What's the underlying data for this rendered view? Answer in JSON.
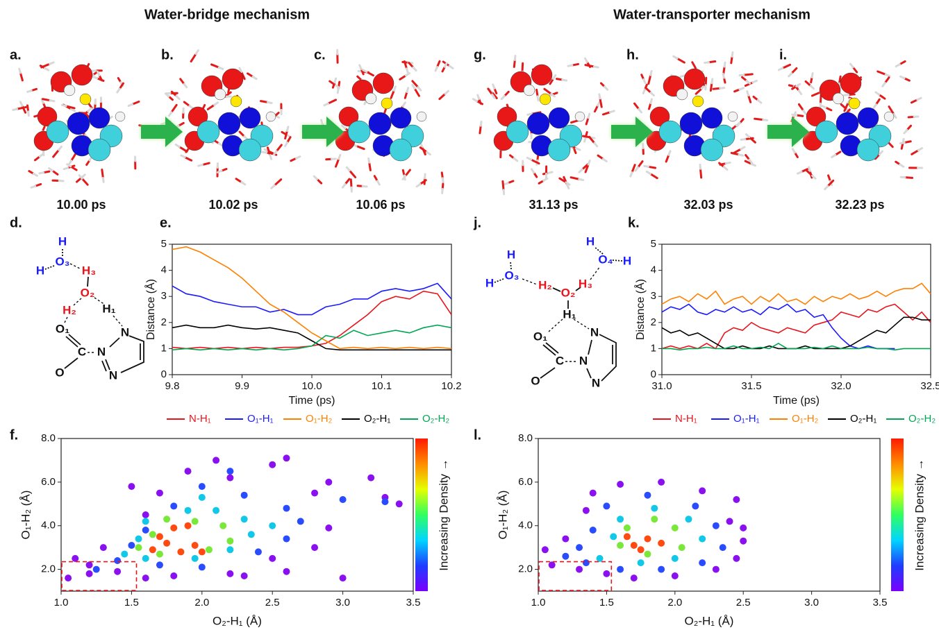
{
  "titles": [
    "Water-bridge mechanism",
    "Water-transporter mechanism"
  ],
  "panel_labels": [
    "a.",
    "b.",
    "c.",
    "g.",
    "h.",
    "i.",
    "d.",
    "e.",
    "j.",
    "k.",
    "f.",
    "l."
  ],
  "timestamps": [
    "10.00 ps",
    "10.02 ps",
    "10.06 ps",
    "31.13 ps",
    "32.03 ps",
    "32.23 ps"
  ],
  "structure_d": [
    "H",
    "H",
    "O₃",
    "H₃",
    "O₂",
    "H₂",
    "H₁",
    "O₁",
    "N",
    "C",
    "N",
    "O",
    "N"
  ],
  "structure_j": [
    "H",
    "H",
    "O₃",
    "H₂",
    "O₂",
    "H₃",
    "H",
    "O₄",
    "H",
    "H₁",
    "O₁",
    "N",
    "C",
    "N",
    "O",
    "N"
  ],
  "chart_data": [
    {
      "type": "line",
      "x_label": "Time (ps)",
      "y_label": "Distance (Å)",
      "legend": "below",
      "x": [
        9.8,
        9.82,
        9.84,
        9.86,
        9.88,
        9.9,
        9.92,
        9.94,
        9.96,
        9.98,
        10.0,
        10.02,
        10.04,
        10.06,
        10.08,
        10.1,
        10.12,
        10.14,
        10.16,
        10.18,
        10.2
      ],
      "xlim": [
        9.8,
        10.2
      ],
      "xticks": [
        9.8,
        9.9,
        {
          "value": 10,
          "label": "10.0"
        },
        10.1,
        10.2
      ],
      "ylim": [
        0,
        5
      ],
      "yticks": [
        0,
        1,
        2,
        3,
        4,
        5
      ],
      "series": [
        {
          "name": "N-H₁",
          "color": "#e8141c",
          "values": [
            1.05,
            1.0,
            1.05,
            1.0,
            1.05,
            1.0,
            1.05,
            1.0,
            1.05,
            1.05,
            1.1,
            1.2,
            1.5,
            1.9,
            2.3,
            2.8,
            3.0,
            2.9,
            3.2,
            3.1,
            2.3
          ]
        },
        {
          "name": "O₁-H₁",
          "color": "#1a1aff",
          "values": [
            3.4,
            3.1,
            3.0,
            2.8,
            2.7,
            2.6,
            2.6,
            2.4,
            2.5,
            2.3,
            2.3,
            2.6,
            2.7,
            2.9,
            2.9,
            3.2,
            3.3,
            3.2,
            3.3,
            3.5,
            2.9
          ]
        },
        {
          "name": "O₁-H₂",
          "color": "#ff8000",
          "values": [
            4.8,
            4.9,
            4.7,
            4.4,
            4.1,
            3.7,
            3.2,
            2.7,
            2.4,
            2.0,
            1.6,
            1.3,
            1.0,
            1.05,
            1.0,
            1.05,
            1.0,
            1.05,
            1.0,
            1.05,
            1.0
          ]
        },
        {
          "name": "O₂-H₁",
          "color": "#000000",
          "values": [
            1.8,
            1.9,
            1.8,
            1.8,
            1.9,
            1.8,
            1.75,
            1.8,
            1.7,
            1.6,
            1.3,
            1.0,
            0.95,
            0.95,
            0.95,
            0.95,
            0.95,
            0.95,
            0.95,
            0.95,
            0.95
          ]
        },
        {
          "name": "O₂-H₂",
          "color": "#00a651",
          "values": [
            0.95,
            1.0,
            0.95,
            1.0,
            0.95,
            1.0,
            0.95,
            1.0,
            0.95,
            1.0,
            1.1,
            1.5,
            1.4,
            1.7,
            1.5,
            1.6,
            1.7,
            1.6,
            1.8,
            1.9,
            1.8
          ]
        }
      ]
    },
    {
      "type": "line",
      "x_label": "Time (ps)",
      "y_label": "Distance (Å)",
      "legend": "below",
      "x": [
        31.0,
        31.05,
        31.1,
        31.15,
        31.2,
        31.25,
        31.3,
        31.35,
        31.4,
        31.45,
        31.5,
        31.55,
        31.6,
        31.65,
        31.7,
        31.75,
        31.8,
        31.85,
        31.9,
        31.95,
        32.0,
        32.05,
        32.1,
        32.15,
        32.2,
        32.25,
        32.3,
        32.35,
        32.4,
        32.45,
        32.5
      ],
      "xlim": [
        31.0,
        32.5
      ],
      "xticks": [
        {
          "value": 31,
          "label": "31.0"
        },
        31.5,
        {
          "value": 32,
          "label": "32.0"
        },
        32.5
      ],
      "ylim": [
        0,
        5
      ],
      "yticks": [
        0,
        1,
        2,
        3,
        4,
        5
      ],
      "series": [
        {
          "name": "N-H₁",
          "color": "#e8141c",
          "values": [
            1.0,
            1.1,
            1.0,
            1.1,
            1.0,
            1.2,
            1.0,
            1.6,
            1.8,
            1.7,
            2.0,
            1.8,
            1.7,
            1.6,
            1.8,
            1.7,
            1.6,
            1.9,
            2.0,
            2.1,
            2.4,
            2.3,
            2.2,
            2.5,
            2.4,
            2.6,
            2.7,
            2.4,
            2.1,
            2.4,
            2.0
          ]
        },
        {
          "name": "O₁-H₁",
          "color": "#1a1aff",
          "values": [
            2.4,
            2.6,
            2.5,
            2.7,
            2.4,
            2.3,
            2.5,
            2.4,
            2.6,
            2.4,
            2.5,
            2.3,
            2.6,
            2.5,
            2.7,
            2.4,
            2.5,
            2.2,
            2.3,
            1.8,
            1.4,
            1.1,
            1.0,
            1.1,
            1.0,
            1.0,
            1.0,
            null,
            null,
            null,
            null
          ]
        },
        {
          "name": "O₁-H₂",
          "color": "#ff8000",
          "values": [
            2.7,
            2.9,
            3.0,
            2.8,
            3.1,
            2.9,
            3.2,
            2.7,
            2.9,
            3.0,
            2.7,
            3.0,
            2.8,
            3.1,
            2.8,
            2.9,
            2.7,
            3.0,
            2.8,
            3.0,
            2.9,
            3.1,
            2.9,
            3.0,
            3.2,
            3.0,
            3.2,
            3.3,
            3.3,
            3.5,
            3.1
          ]
        },
        {
          "name": "O₂-H₁",
          "color": "#000000",
          "values": [
            1.8,
            1.6,
            1.7,
            1.5,
            1.6,
            1.4,
            1.2,
            1.0,
            1.0,
            1.1,
            1.0,
            1.0,
            1.1,
            1.0,
            1.0,
            1.0,
            1.1,
            1.0,
            1.0,
            1.0,
            1.0,
            1.1,
            1.3,
            1.5,
            1.7,
            1.6,
            1.9,
            2.2,
            2.2,
            2.1,
            2.1
          ]
        },
        {
          "name": "O₂-H₂",
          "color": "#00a651",
          "values": [
            1.0,
            1.0,
            0.95,
            1.0,
            1.0,
            1.05,
            1.0,
            1.0,
            1.1,
            1.0,
            1.0,
            1.05,
            1.0,
            1.2,
            1.0,
            1.0,
            1.0,
            1.05,
            1.0,
            1.1,
            1.0,
            1.0,
            1.0,
            1.05,
            1.0,
            1.0,
            0.95,
            1.0,
            1.0,
            1.0,
            1.0
          ]
        }
      ]
    },
    {
      "type": "scatter",
      "x_label": "O₂-H₁ (Å)",
      "y_label": "O₁-H₂ (Å)",
      "colorbar_label": "Increasing Density →",
      "colormap": [
        "#7a00ff",
        "#1f3cff",
        "#00d5ff",
        "#30ff60",
        "#e6ff00",
        "#ff8c00",
        "#ff1a00"
      ],
      "xlim": [
        1.0,
        3.5
      ],
      "xticks": [
        {
          "value": 1,
          "label": "1.0"
        },
        1.5,
        {
          "value": 2,
          "label": "2.0"
        },
        2.5,
        {
          "value": 3,
          "label": "3.0"
        },
        3.5
      ],
      "ylim": [
        1.0,
        8.0
      ],
      "yticks": [
        {
          "value": 2,
          "label": "2.0"
        },
        {
          "value": 4,
          "label": "4.0"
        },
        {
          "value": 6,
          "label": "6.0"
        },
        {
          "value": 8,
          "label": "8.0"
        }
      ],
      "highlight_box": {
        "xlim": [
          1.0,
          1.53
        ],
        "ylim": [
          1.0,
          2.35
        ],
        "color": "#e8141c"
      },
      "series": [
        {
          "color": "#8a10f0",
          "x": [
            1.05,
            1.2,
            1.4,
            1.6,
            1.8,
            2.2,
            2.6,
            3.0,
            1.1,
            1.3,
            1.6,
            1.7,
            1.9,
            2.1,
            2.5,
            2.6,
            2.9,
            3.2,
            3.4,
            2.9,
            2.8,
            2.5,
            1.5,
            2.2,
            3.3,
            2.8,
            1.2,
            2.3
          ],
          "y": [
            1.6,
            1.8,
            1.9,
            1.6,
            1.7,
            1.8,
            1.9,
            1.6,
            2.5,
            3.0,
            4.5,
            5.5,
            6.5,
            7.0,
            6.8,
            7.1,
            6.0,
            6.2,
            5.0,
            3.9,
            3.0,
            2.5,
            5.8,
            6.2,
            5.3,
            5.5,
            2.2,
            1.7
          ]
        },
        {
          "color": "#2a4cff",
          "x": [
            1.25,
            1.4,
            1.5,
            1.6,
            1.8,
            2.0,
            2.3,
            2.6,
            2.7,
            2.6,
            2.4,
            2.0,
            1.7,
            3.0,
            3.3,
            2.2
          ],
          "y": [
            2.0,
            2.4,
            3.1,
            3.8,
            4.9,
            5.8,
            5.4,
            4.8,
            4.2,
            3.4,
            2.8,
            2.1,
            2.2,
            5.2,
            5.1,
            6.5
          ]
        },
        {
          "color": "#12c8e8",
          "x": [
            1.45,
            1.55,
            1.6,
            1.9,
            2.1,
            2.3,
            2.35,
            2.2,
            1.95,
            1.6,
            2.0,
            2.5
          ],
          "y": [
            2.7,
            3.4,
            4.2,
            4.7,
            4.7,
            4.3,
            3.6,
            2.9,
            2.5,
            2.5,
            5.3,
            4.0
          ]
        },
        {
          "color": "#7ae83a",
          "x": [
            1.55,
            1.65,
            1.75,
            1.95,
            2.15,
            2.2,
            2.05,
            1.7
          ],
          "y": [
            3.0,
            3.6,
            4.3,
            4.2,
            4.0,
            3.3,
            2.9,
            2.7
          ]
        },
        {
          "color": "#ff4a10",
          "x": [
            1.65,
            1.75,
            1.85,
            1.95,
            1.8,
            1.9,
            2.0,
            1.7
          ],
          "y": [
            2.9,
            3.2,
            2.8,
            3.1,
            3.9,
            4.0,
            2.8,
            3.5
          ]
        }
      ]
    },
    {
      "type": "scatter",
      "x_label": "O₂-H₁ (Å)",
      "y_label": "O₁-H₂ (Å)",
      "colorbar_label": "Increasing Density →",
      "colormap": [
        "#7a00ff",
        "#1f3cff",
        "#00d5ff",
        "#30ff60",
        "#e6ff00",
        "#ff8c00",
        "#ff1a00"
      ],
      "xlim": [
        1.0,
        3.5
      ],
      "xticks": [
        {
          "value": 1,
          "label": "1.0"
        },
        1.5,
        {
          "value": 2,
          "label": "2.0"
        },
        2.5,
        {
          "value": 3,
          "label": "3.0"
        },
        3.5
      ],
      "ylim": [
        1.0,
        8.0
      ],
      "yticks": [
        {
          "value": 2,
          "label": "2.0"
        },
        {
          "value": 4,
          "label": "4.0"
        },
        {
          "value": 6,
          "label": "6.0"
        },
        {
          "value": 8,
          "label": "8.0"
        }
      ],
      "highlight_box": {
        "xlim": [
          1.0,
          1.53
        ],
        "ylim": [
          1.0,
          2.35
        ],
        "color": "#e8141c"
      },
      "series": [
        {
          "color": "#8a10f0",
          "x": [
            1.05,
            1.1,
            1.3,
            1.5,
            1.7,
            2.0,
            2.3,
            2.45,
            2.5,
            2.4,
            2.45,
            2.2,
            1.9,
            1.6,
            1.4,
            1.35,
            1.2,
            2.5
          ],
          "y": [
            2.9,
            2.2,
            2.0,
            1.8,
            1.6,
            1.7,
            2.0,
            2.5,
            3.3,
            4.2,
            5.2,
            5.6,
            6.0,
            5.9,
            5.5,
            4.7,
            3.4,
            3.9
          ]
        },
        {
          "color": "#2a4cff",
          "x": [
            1.2,
            1.35,
            1.6,
            1.9,
            2.2,
            2.35,
            2.3,
            2.15,
            1.8,
            1.5,
            1.4,
            1.3
          ],
          "y": [
            2.6,
            2.3,
            2.0,
            2.0,
            2.3,
            3.0,
            4.0,
            4.9,
            5.4,
            4.9,
            3.8,
            3.0
          ]
        },
        {
          "color": "#12c8e8",
          "x": [
            1.45,
            1.55,
            1.6,
            1.85,
            2.1,
            2.2,
            2.0,
            1.75
          ],
          "y": [
            2.5,
            3.5,
            4.3,
            4.8,
            4.3,
            3.4,
            2.5,
            2.3
          ]
        },
        {
          "color": "#7ae83a",
          "x": [
            1.6,
            1.65,
            1.85,
            2.0,
            2.05,
            1.8
          ],
          "y": [
            3.1,
            3.9,
            4.3,
            3.9,
            3.0,
            2.7
          ]
        },
        {
          "color": "#ff4a10",
          "x": [
            1.7,
            1.8,
            1.75,
            1.9,
            1.65
          ],
          "y": [
            3.1,
            3.4,
            2.9,
            3.2,
            3.5
          ]
        }
      ]
    }
  ]
}
